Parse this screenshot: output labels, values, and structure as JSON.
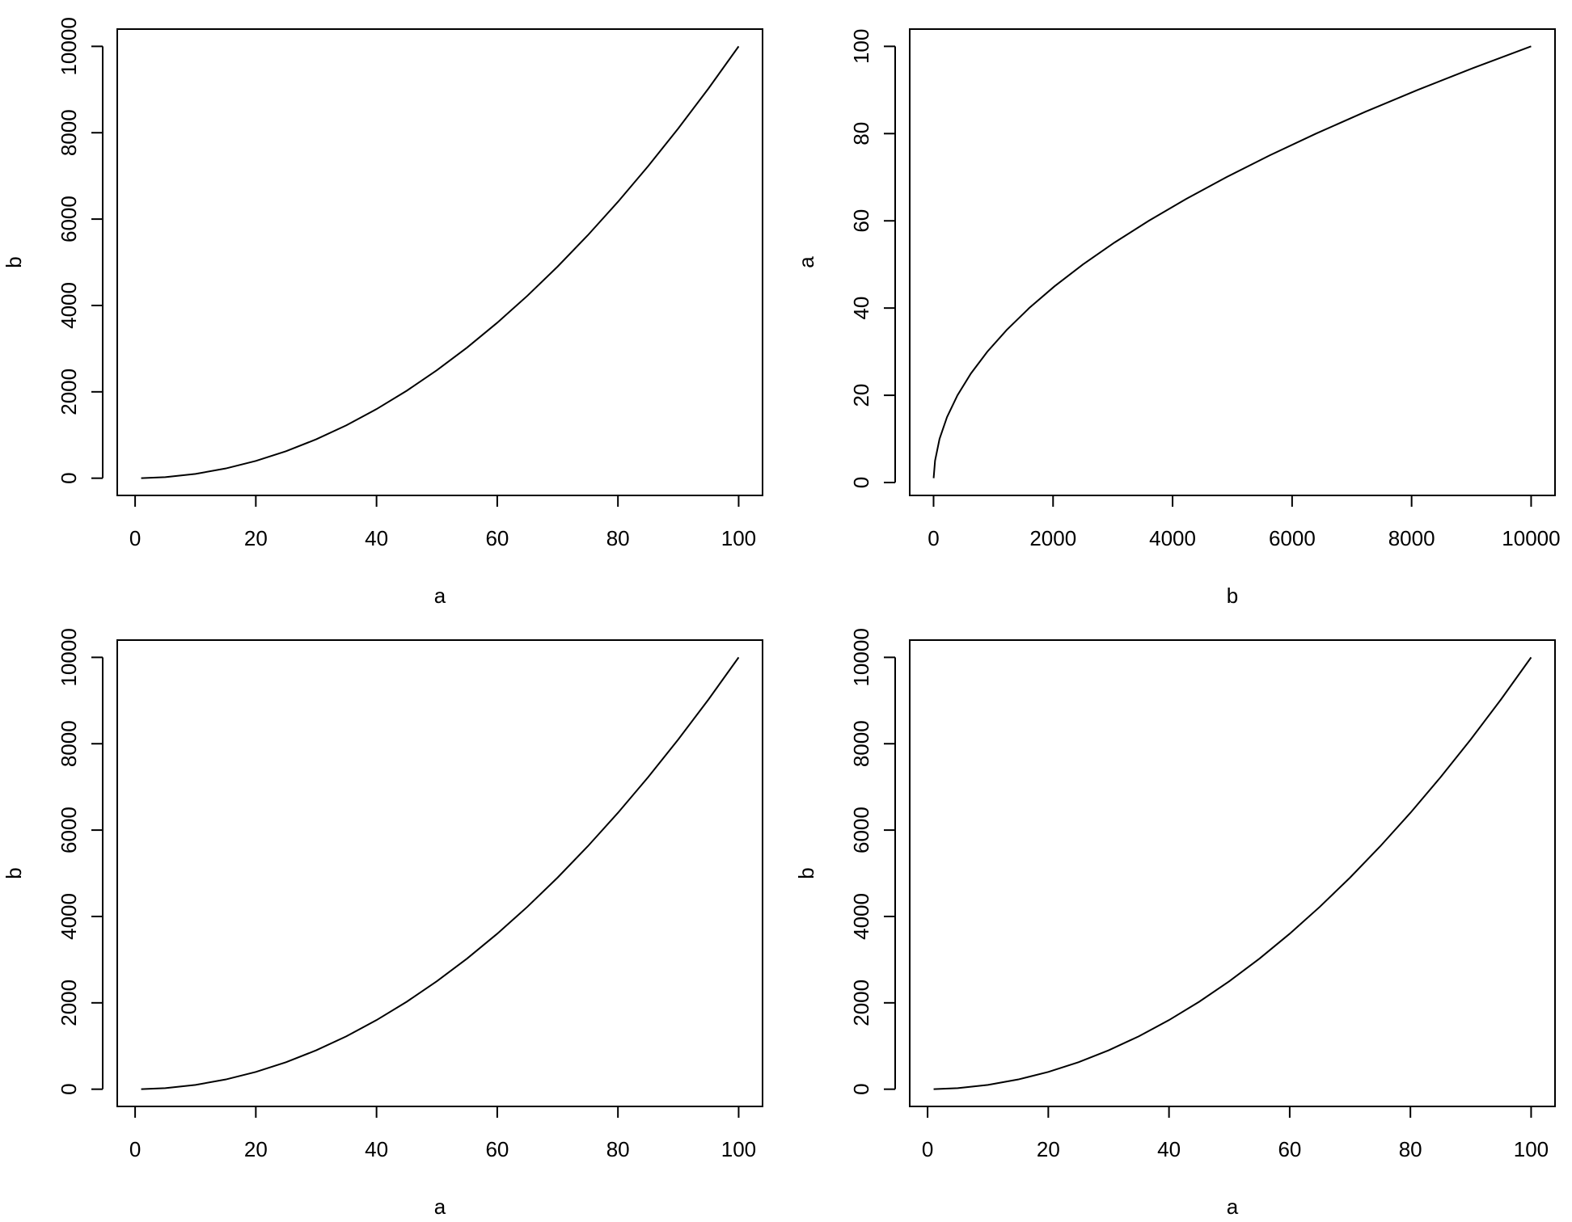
{
  "chart_data": [
    {
      "type": "line",
      "xlabel": "a",
      "ylabel": "b",
      "color": "#000000",
      "x": [
        1,
        5,
        10,
        15,
        20,
        25,
        30,
        35,
        40,
        45,
        50,
        55,
        60,
        65,
        70,
        75,
        80,
        85,
        90,
        95,
        100
      ],
      "values": [
        1,
        25,
        100,
        225,
        400,
        625,
        900,
        1225,
        1600,
        2025,
        2500,
        3025,
        3600,
        4225,
        4900,
        5625,
        6400,
        7225,
        8100,
        9025,
        10000
      ],
      "xlim": [
        -2.96,
        103.96
      ],
      "ylim": [
        -398.96,
        10399.96
      ],
      "xticks": [
        0,
        20,
        40,
        60,
        80,
        100
      ],
      "yticks": [
        0,
        2000,
        4000,
        6000,
        8000,
        10000
      ]
    },
    {
      "type": "line",
      "xlabel": "b",
      "ylabel": "a",
      "color": "#000000",
      "x": [
        1,
        25,
        100,
        225,
        400,
        625,
        900,
        1225,
        1600,
        2025,
        2500,
        3025,
        3600,
        4225,
        4900,
        5625,
        6400,
        7225,
        8100,
        9025,
        10000
      ],
      "values": [
        1,
        5,
        10,
        15,
        20,
        25,
        30,
        35,
        40,
        45,
        50,
        55,
        60,
        65,
        70,
        75,
        80,
        85,
        90,
        95,
        100
      ],
      "xlim": [
        -398.96,
        10399.96
      ],
      "ylim": [
        -2.96,
        103.96
      ],
      "xticks": [
        0,
        2000,
        4000,
        6000,
        8000,
        10000
      ],
      "yticks": [
        0,
        20,
        40,
        60,
        80,
        100
      ]
    },
    {
      "type": "line",
      "xlabel": "a",
      "ylabel": "b",
      "color": "#000000",
      "x": [
        1,
        5,
        10,
        15,
        20,
        25,
        30,
        35,
        40,
        45,
        50,
        55,
        60,
        65,
        70,
        75,
        80,
        85,
        90,
        95,
        100
      ],
      "values": [
        1,
        25,
        100,
        225,
        400,
        625,
        900,
        1225,
        1600,
        2025,
        2500,
        3025,
        3600,
        4225,
        4900,
        5625,
        6400,
        7225,
        8100,
        9025,
        10000
      ],
      "xlim": [
        -2.96,
        103.96
      ],
      "ylim": [
        -398.96,
        10399.96
      ],
      "xticks": [
        0,
        20,
        40,
        60,
        80,
        100
      ],
      "yticks": [
        0,
        2000,
        4000,
        6000,
        8000,
        10000
      ]
    },
    {
      "type": "line",
      "xlabel": "a",
      "ylabel": "b",
      "color": "#000000",
      "x": [
        1,
        5,
        10,
        15,
        20,
        25,
        30,
        35,
        40,
        45,
        50,
        55,
        60,
        65,
        70,
        75,
        80,
        85,
        90,
        95,
        100
      ],
      "values": [
        1,
        25,
        100,
        225,
        400,
        625,
        900,
        1225,
        1600,
        2025,
        2500,
        3025,
        3600,
        4225,
        4900,
        5625,
        6400,
        7225,
        8100,
        9025,
        10000
      ],
      "xlim": [
        -2.96,
        103.96
      ],
      "ylim": [
        -398.96,
        10399.96
      ],
      "xticks": [
        0,
        20,
        40,
        60,
        80,
        100
      ],
      "yticks": [
        0,
        2000,
        4000,
        6000,
        8000,
        10000
      ]
    }
  ]
}
